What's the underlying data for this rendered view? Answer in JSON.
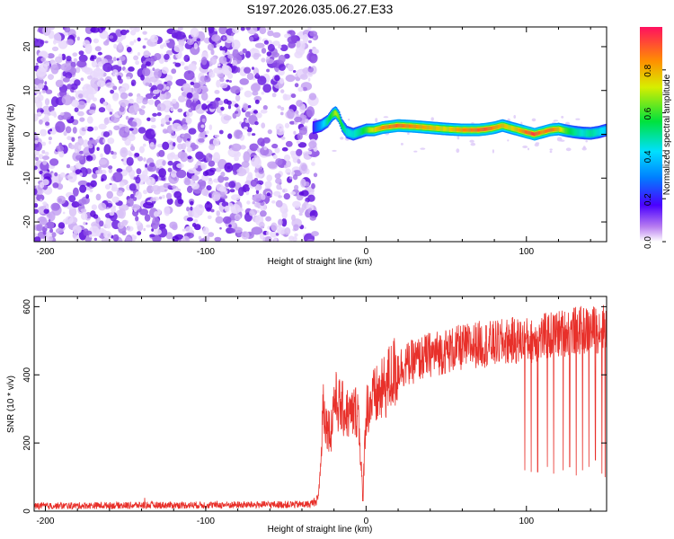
{
  "title": "S197.2026.035.06.27.E33",
  "chart_data": [
    {
      "type": "heatmap",
      "name": "spectrogram",
      "xlabel": "Height of straight line (km)",
      "ylabel": "Frequency (Hz)",
      "xlim": [
        -207,
        150
      ],
      "ylim": [
        -24.5,
        24.5
      ],
      "xticks": [
        -200,
        -100,
        0,
        100
      ],
      "xtick_labels": [
        "-200",
        "-100",
        "0",
        "100"
      ],
      "yticks": [
        -20,
        -10,
        0,
        10,
        20
      ],
      "ytick_labels": [
        "-20",
        "-10",
        "0",
        "10",
        "20"
      ],
      "noise_region_x": [
        -207,
        -31
      ],
      "signal_trace": {
        "x": [
          -33,
          -28,
          -24,
          -21,
          -19,
          -17,
          -15,
          -12,
          -8,
          -4,
          0,
          5,
          10,
          20,
          30,
          40,
          50,
          60,
          70,
          75,
          80,
          85,
          90,
          95,
          100,
          105,
          110,
          115,
          120,
          125,
          130,
          135,
          140,
          145,
          150
        ],
        "freq": [
          1.5,
          2.0,
          3.0,
          4.5,
          5.0,
          4.0,
          2.0,
          0.5,
          0.0,
          0.5,
          1.0,
          1.0,
          1.5,
          2.0,
          1.8,
          1.5,
          1.2,
          1.0,
          1.0,
          1.2,
          1.5,
          2.0,
          1.5,
          1.0,
          0.5,
          0.0,
          0.5,
          1.0,
          1.2,
          0.8,
          0.5,
          0.3,
          0.2,
          0.5,
          1.0
        ],
        "amplitude": [
          0.2,
          0.35,
          0.5,
          0.6,
          0.7,
          0.65,
          0.55,
          0.45,
          0.45,
          0.5,
          0.6,
          0.75,
          0.85,
          0.9,
          0.85,
          0.8,
          0.75,
          0.85,
          0.9,
          0.92,
          0.85,
          0.8,
          0.75,
          0.8,
          0.9,
          0.95,
          0.85,
          0.9,
          0.8,
          0.6,
          0.5,
          0.45,
          0.5,
          0.45,
          0.4
        ]
      },
      "colorbar": {
        "label": "Normalized spectral amplitude",
        "range": [
          0,
          1
        ],
        "ticks": [
          0.0,
          0.2,
          0.4,
          0.6,
          0.8
        ],
        "tick_labels": [
          "0.0",
          "0.2",
          "0.4",
          "0.6",
          "0.8"
        ]
      }
    },
    {
      "type": "line",
      "name": "snr",
      "xlabel": "Height of straight line (km)",
      "ylabel": "SNR (10 * v/v)",
      "xlim": [
        -207,
        150
      ],
      "ylim": [
        0,
        630
      ],
      "xticks": [
        -200,
        -100,
        0,
        100
      ],
      "xtick_labels": [
        "-200",
        "-100",
        "0",
        "100"
      ],
      "yticks": [
        0,
        200,
        400,
        600
      ],
      "ytick_labels": [
        "0",
        "200",
        "400",
        "600"
      ],
      "color": "#e8302a",
      "series": [
        {
          "name": "SNR",
          "x": [
            -207,
            -150,
            -100,
            -60,
            -35,
            -30,
            -28,
            -27,
            -25,
            -22,
            -20,
            -15,
            -10,
            -5,
            -2,
            0,
            5,
            10,
            15,
            20,
            30,
            40,
            50,
            60,
            70,
            80,
            90,
            100,
            110,
            120,
            130,
            140,
            150
          ],
          "y": [
            15,
            17,
            18,
            19,
            20,
            35,
            150,
            330,
            260,
            230,
            330,
            300,
            280,
            300,
            50,
            300,
            330,
            350,
            390,
            420,
            440,
            460,
            470,
            480,
            490,
            490,
            500,
            500,
            510,
            520,
            530,
            530,
            540
          ],
          "dropouts_x": [
            99,
            103,
            107,
            113,
            117,
            123,
            127,
            131,
            135,
            139,
            143,
            147,
            149
          ],
          "dropouts_y": [
            120,
            115,
            115,
            130,
            110,
            120,
            130,
            105,
            120,
            130,
            150,
            110,
            100
          ]
        }
      ]
    }
  ]
}
